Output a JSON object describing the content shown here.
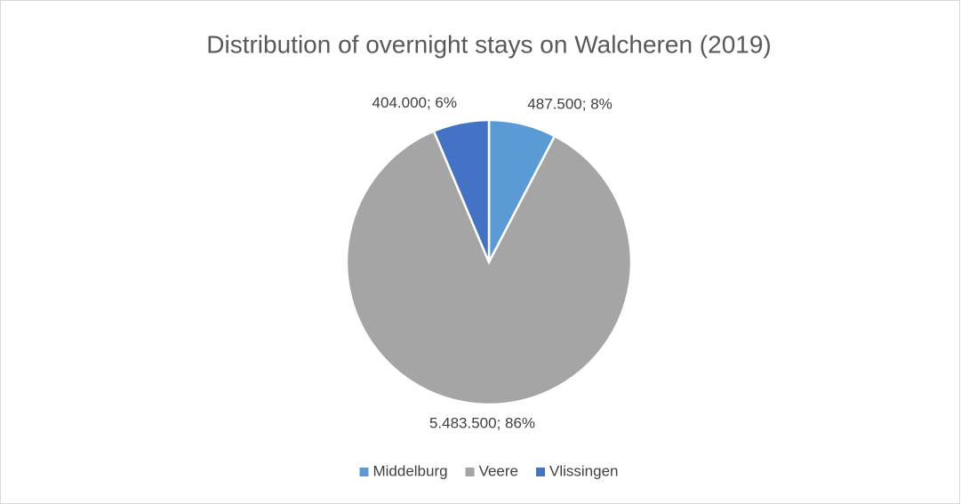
{
  "chart_data": {
    "type": "pie",
    "title": "Distribution of overnight stays on Walcheren (2019)",
    "categories": [
      "Middelburg",
      "Veere",
      "Vlissingen"
    ],
    "values": [
      487500,
      5483500,
      404000
    ],
    "value_labels": [
      "487.500; 8%",
      "5.483.500; 86%",
      "404.000; 6%"
    ],
    "colors": [
      "#5b9bd5",
      "#a5a5a5",
      "#4472c4"
    ],
    "legend": "bottom"
  }
}
